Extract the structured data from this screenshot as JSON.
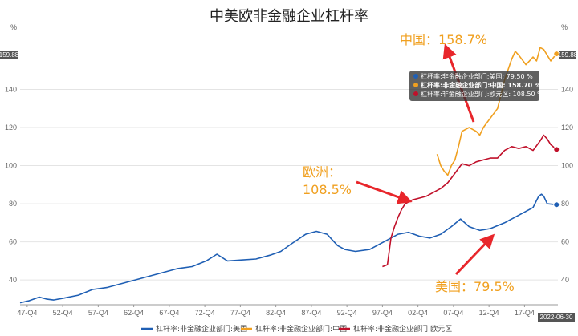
{
  "chart_data": {
    "type": "line",
    "title": "中美欧非金融企业杠杆率",
    "ylabel_left": "%",
    "ylabel_right": "%",
    "ylim": [
      27,
      168
    ],
    "yticks": [
      40,
      60,
      80,
      100,
      120,
      140
    ],
    "xticks": [
      "47-Q4",
      "52-Q4",
      "57-Q4",
      "62-Q4",
      "67-Q4",
      "72-Q4",
      "77-Q4",
      "82-Q4",
      "87-Q4",
      "92-Q4",
      "97-Q4",
      "02-Q4",
      "07-Q4",
      "12-Q4",
      "17-Q4"
    ],
    "xlim": [
      1946.8,
      2022.5
    ],
    "current_value_flag": "159.88",
    "end_date_flag": "2022-06-30",
    "series": [
      {
        "name": "杠杆率:非金融企业部门:美国",
        "color": "#1f5fb4",
        "x": [
          1946.8,
          1948,
          1949.5,
          1950.5,
          1951.5,
          1953,
          1955,
          1957,
          1959,
          1961,
          1963,
          1965,
          1967,
          1969,
          1971,
          1973,
          1974.5,
          1976,
          1978,
          1980,
          1982,
          1983.5,
          1985,
          1987,
          1988.5,
          1990,
          1991.5,
          1992.5,
          1994,
          1996,
          1998,
          2000,
          2001.5,
          2003,
          2004.5,
          2006,
          2007.5,
          2008.8,
          2010,
          2011.5,
          2013,
          2015,
          2017,
          2019,
          2019.8,
          2020.2,
          2020.5,
          2021,
          2022.3
        ],
        "values": [
          28,
          29,
          31,
          30,
          29.5,
          30.5,
          32,
          35,
          36,
          38,
          40,
          42,
          44,
          46,
          47,
          50,
          53.5,
          50,
          50.5,
          51,
          53,
          55,
          59,
          64,
          65.5,
          64,
          58,
          56,
          55,
          56,
          60,
          64,
          65,
          63,
          62,
          64,
          68,
          72,
          68,
          66,
          67,
          70,
          74,
          78,
          84,
          85,
          84,
          80,
          79.5
        ]
      },
      {
        "name": "杠杆率:非金融企业部门:中国",
        "color": "#f0a020",
        "x": [
          2005.5,
          2006,
          2006.5,
          2007,
          2007.5,
          2008,
          2008.5,
          2009,
          2009.5,
          2010,
          2011,
          2011.5,
          2012,
          2013,
          2014,
          2015,
          2016,
          2016.5,
          2017,
          2018,
          2018.5,
          2019,
          2019.5,
          2020,
          2020.5,
          2021,
          2021.5,
          2022.3
        ],
        "values": [
          106,
          100,
          97,
          95,
          100,
          103,
          110,
          118,
          119,
          120,
          118,
          116,
          120,
          125,
          130,
          145,
          156,
          160,
          158,
          153,
          155,
          157,
          155,
          162,
          161,
          158,
          155,
          158.7
        ]
      },
      {
        "name": "杠杆率:非金融企业部门:欧元区",
        "color": "#c0102a",
        "x": [
          1997.8,
          1998.5,
          1999,
          1999.5,
          2000,
          2000.5,
          2001,
          2002,
          2003,
          2004,
          2005,
          2006,
          2007,
          2008,
          2009,
          2010,
          2011,
          2012,
          2013,
          2014,
          2015,
          2016,
          2017,
          2018,
          2019,
          2020,
          2020.5,
          2021,
          2021.5,
          2022.3
        ],
        "values": [
          47,
          48,
          62,
          68,
          73,
          77,
          80,
          82,
          83,
          84,
          86,
          88,
          91,
          96,
          101,
          100,
          102,
          103,
          104,
          104,
          108,
          110,
          109,
          110,
          108,
          113,
          116,
          114,
          111,
          108.5
        ]
      }
    ],
    "annotations": [
      {
        "text": "中国：158.7%",
        "color": "#f0a020"
      },
      {
        "text_lines": [
          "欧洲：",
          "108.5%"
        ],
        "color": "#f0a020"
      },
      {
        "text": "美国：79.5%",
        "color": "#f0a020"
      }
    ],
    "tooltip": {
      "lines": [
        {
          "text": "杠杆率:非金融企业部门:美国: 79.50  %",
          "color": "#1f5fb4",
          "bold": false
        },
        {
          "text": "杠杆率:非金融企业部门:中国: 158.70  %",
          "color": "#f0a020",
          "bold": true
        },
        {
          "text": "杠杆率:非金融企业部门:欧元区: 108.50  %",
          "color": "#c0102a",
          "bold": false
        }
      ]
    },
    "legend_position": "bottom-center",
    "grid": "horizontal"
  }
}
